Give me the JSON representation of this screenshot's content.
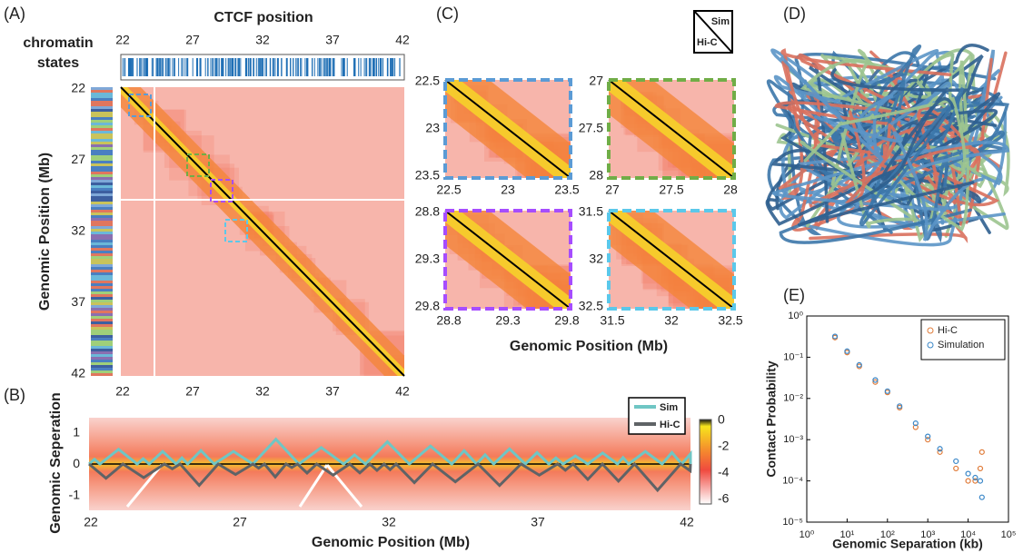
{
  "panel_labels": [
    "(A)",
    "(B)",
    "(C)",
    "(D)",
    "(E)"
  ],
  "panel_a": {
    "top_title": "CTCF position",
    "left_title": [
      "chromatin",
      "states"
    ],
    "y_label": "Genomic Position (Mb)",
    "top_ticks": [
      22,
      27,
      32,
      37,
      42
    ],
    "left_ticks": [
      22,
      27,
      32,
      37,
      42
    ],
    "bottom_ticks": [
      22,
      27,
      32,
      37,
      42
    ]
  },
  "panel_b": {
    "y_label": "Genomic Seperation",
    "x_label": "Genomic Position (Mb)",
    "y_ticks": [
      1,
      0,
      -1
    ],
    "x_ticks": [
      22,
      27,
      32,
      37,
      42
    ],
    "legend": [
      "Sim",
      "Hi-C"
    ],
    "colorbar_ticks": [
      0,
      -2,
      -4,
      -6
    ]
  },
  "panel_c": {
    "legend": [
      "Sim",
      "Hi-C"
    ],
    "x_label": "Genomic Position (Mb)",
    "subpanels": [
      {
        "y_ticks": [
          22.5,
          23,
          23.5
        ],
        "x_ticks": [
          22.5,
          23,
          23.5
        ]
      },
      {
        "y_ticks": [
          27,
          27.5,
          28
        ],
        "x_ticks": [
          27,
          27.5,
          28
        ]
      },
      {
        "y_ticks": [
          28.8,
          29.3,
          29.8
        ],
        "x_ticks": [
          28.8,
          29.3,
          29.8
        ]
      },
      {
        "y_ticks": [
          31.5,
          32,
          32.5
        ],
        "x_ticks": [
          31.5,
          32,
          32.5
        ]
      }
    ]
  },
  "chart_data": {
    "type": "scatter",
    "x_label": "Genomic Separation (kb)",
    "y_label": "Contact Probability",
    "xlog": true,
    "ylog": true,
    "xlim": [
      1,
      100000
    ],
    "ylim": [
      1e-05,
      1
    ],
    "xticks": [
      {
        "value": 1,
        "label": "10⁰"
      },
      {
        "value": 10,
        "label": "10¹"
      },
      {
        "value": 100,
        "label": "10²"
      },
      {
        "value": 1000,
        "label": "10³"
      },
      {
        "value": 10000,
        "label": "10⁴"
      },
      {
        "value": 100000,
        "label": "10⁵"
      }
    ],
    "yticks": [
      {
        "value": 1,
        "label": "10⁰"
      },
      {
        "value": 0.1,
        "label": "10⁻¹"
      },
      {
        "value": 0.01,
        "label": "10⁻²"
      },
      {
        "value": 0.001,
        "label": "10⁻³"
      },
      {
        "value": 0.0001,
        "label": "10⁻⁴"
      },
      {
        "value": 1e-05,
        "label": "10⁻⁵"
      }
    ],
    "legend_position": "upper right",
    "x": [
      5,
      10,
      20,
      50,
      100,
      200,
      500,
      1000,
      2000,
      5000,
      10000,
      15000,
      20000,
      22000
    ],
    "series": [
      {
        "name": "Hi-C",
        "color": "#e07b39",
        "values": [
          0.3,
          0.13,
          0.06,
          0.025,
          0.014,
          0.006,
          0.002,
          0.001,
          0.0005,
          0.0002,
          0.0001,
          0.0001,
          0.0002,
          0.0005
        ]
      },
      {
        "name": "Simulation",
        "color": "#3a87c8",
        "values": [
          0.32,
          0.14,
          0.065,
          0.028,
          0.015,
          0.0065,
          0.0025,
          0.0012,
          0.0006,
          0.0003,
          0.00015,
          0.00012,
          0.0001,
          4e-05
        ]
      }
    ]
  }
}
